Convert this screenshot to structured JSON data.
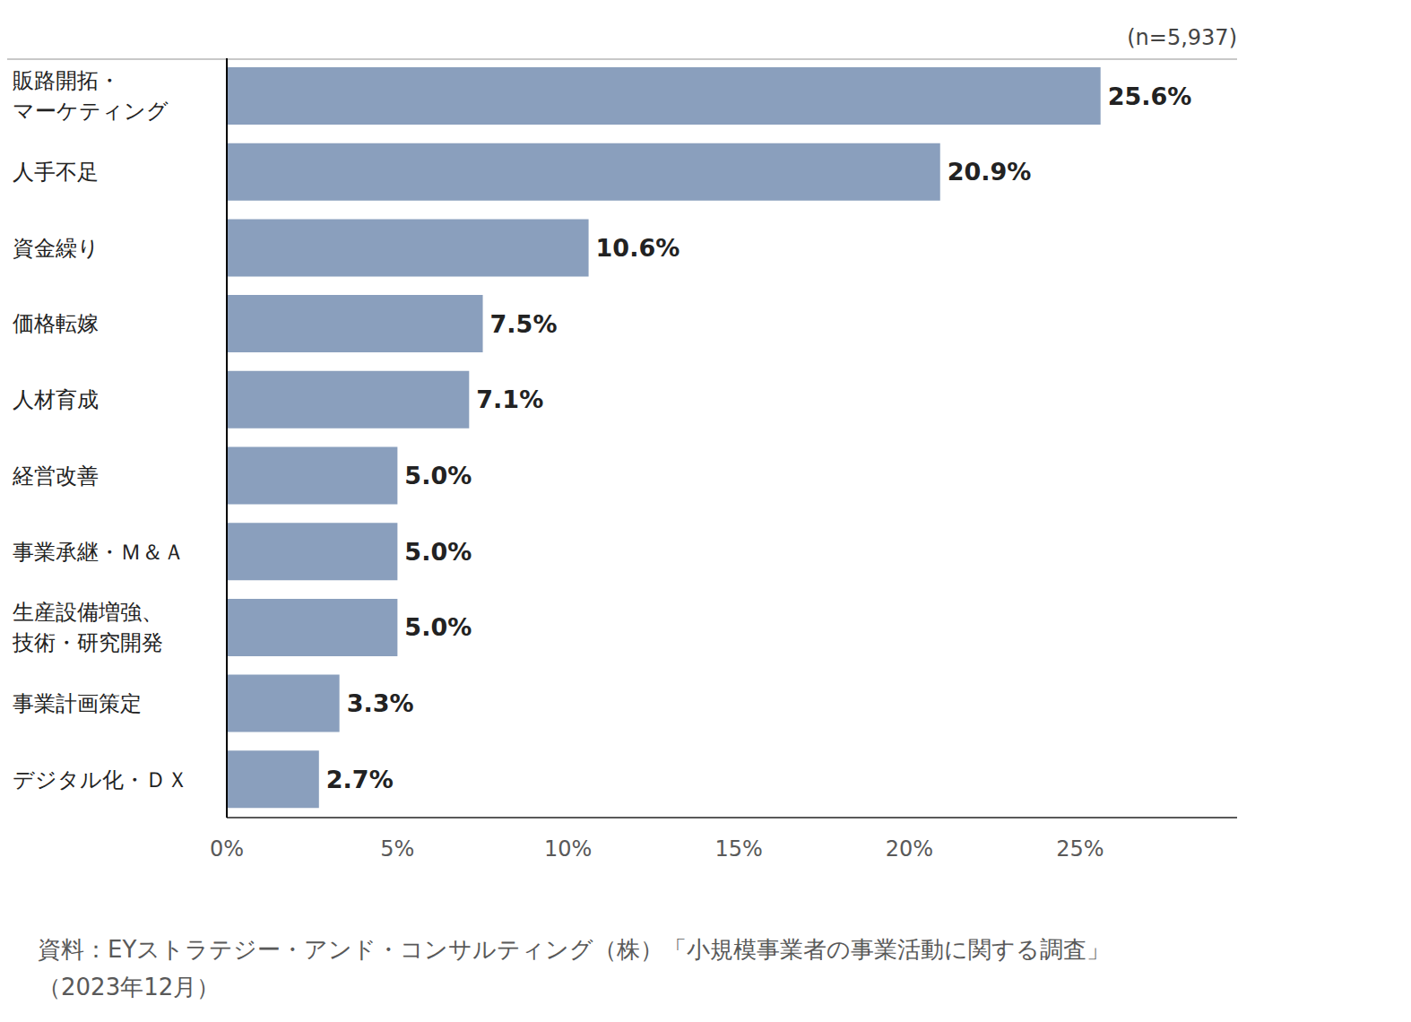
{
  "chart_data": {
    "type": "bar",
    "orientation": "horizontal",
    "note": "(n=5,937)",
    "source": "資料：EYストラテジー・アンド・コンサルティング（株）「小規模事業者の事業活動に関する調査」\n（2023年12月）",
    "categories": [
      "販路開拓・\nマーケティング",
      "人手不足",
      "資金繰り",
      "価格転嫁",
      "人材育成",
      "経営改善",
      "事業承継・Ｍ＆Ａ",
      "生産設備増強、\n技術・研究開発",
      "事業計画策定",
      "デジタル化・ＤＸ"
    ],
    "values": [
      25.6,
      20.9,
      10.6,
      7.5,
      7.1,
      5.0,
      5.0,
      5.0,
      3.3,
      2.7
    ],
    "value_labels": [
      "25.6%",
      "20.9%",
      "10.6%",
      "7.5%",
      "7.1%",
      "5.0%",
      "5.0%",
      "5.0%",
      "3.3%",
      "2.7%"
    ],
    "color": "#8a9fbd",
    "xlim": [
      0,
      29.6
    ],
    "xticks": [
      {
        "value": 0,
        "label": "0%"
      },
      {
        "value": 5,
        "label": "5%"
      },
      {
        "value": 10,
        "label": "10%"
      },
      {
        "value": 15,
        "label": "15%"
      },
      {
        "value": 20,
        "label": "20%"
      },
      {
        "value": 25,
        "label": "25%"
      }
    ],
    "grid": false,
    "data_labels": true
  }
}
